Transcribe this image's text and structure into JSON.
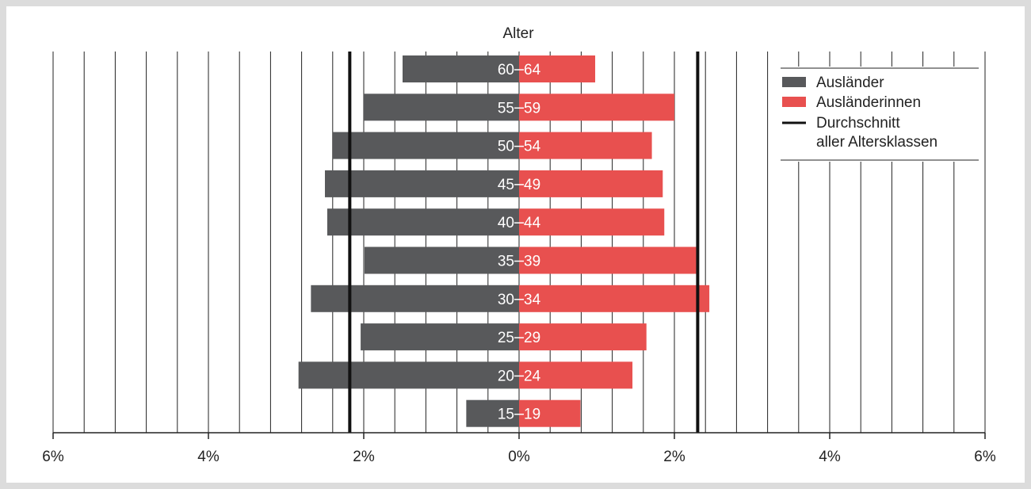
{
  "chart_data": {
    "type": "bar",
    "orientation": "horizontal-diverging",
    "title": "Alter",
    "categories": [
      "60–64",
      "55–59",
      "50–54",
      "45–49",
      "40–44",
      "35–39",
      "30–34",
      "25–29",
      "20–24",
      "15–19"
    ],
    "cat_left": [
      "60",
      "55",
      "50",
      "45",
      "40",
      "35",
      "30",
      "25",
      "20",
      "15"
    ],
    "cat_right": [
      "64",
      "59",
      "54",
      "49",
      "44",
      "39",
      "34",
      "29",
      "24",
      "19"
    ],
    "series": [
      {
        "name": "Ausländer",
        "side": "left",
        "color": "#58595b",
        "values": [
          1.5,
          2.0,
          2.4,
          2.5,
          2.47,
          1.99,
          2.68,
          2.04,
          2.84,
          0.68
        ]
      },
      {
        "name": "Ausländerinnen",
        "side": "right",
        "color": "#e8504f",
        "values": [
          0.98,
          2.0,
          1.71,
          1.85,
          1.87,
          2.28,
          2.45,
          1.64,
          1.46,
          0.79
        ]
      }
    ],
    "average_lines": {
      "left": 2.18,
      "right": 2.3,
      "color": "#111111"
    },
    "xlim": [
      -6,
      6
    ],
    "xticks": [
      -6,
      -4,
      -2,
      0,
      2,
      4,
      6
    ],
    "xtick_labels": [
      "6%",
      "4%",
      "2%",
      "0%",
      "2%",
      "4%",
      "6%"
    ],
    "grid": true,
    "grid_step": 0.4,
    "legend": {
      "position": "top-right",
      "items": [
        {
          "type": "box",
          "label": "Ausländer",
          "color": "#58595b"
        },
        {
          "type": "box",
          "label": "Ausländerinnen",
          "color": "#e8504f"
        },
        {
          "type": "line",
          "label": "Durchschnitt",
          "label2": "aller Altersklassen",
          "color": "#111111"
        }
      ]
    },
    "colors": {
      "text": "#222222",
      "grid": "#222222",
      "background": "#ffffff",
      "frame": "#dcdcdc",
      "category_label": "#ffffff"
    }
  }
}
